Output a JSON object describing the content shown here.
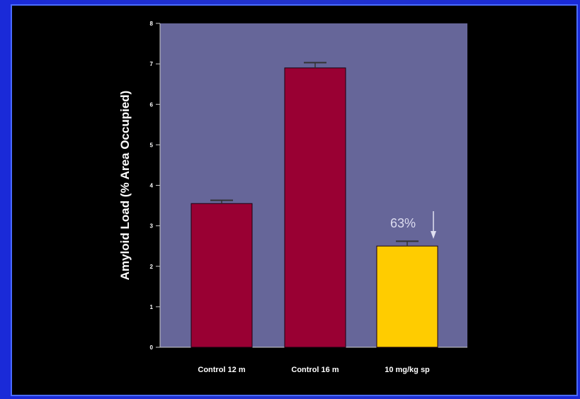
{
  "chart_data": {
    "type": "bar",
    "title": "",
    "xlabel": "",
    "ylabel": "Amyloid Load (% Area Occupied)",
    "ylim": [
      0,
      8
    ],
    "yticks": [
      "0",
      "1",
      "2",
      "3",
      "4",
      "5",
      "6",
      "7",
      "8"
    ],
    "grid": false,
    "categories": [
      "Control 12 m",
      "Control 16 m",
      "10 mg/kg sp"
    ],
    "values": [
      3.55,
      6.9,
      2.5
    ],
    "errors": [
      0.08,
      0.13,
      0.12
    ],
    "bar_colors": [
      "#990033",
      "#990033",
      "#ffcc00"
    ],
    "plot_background": "#666699",
    "annotation": {
      "text": "63%",
      "arrow": "down",
      "category_index": 2
    }
  }
}
